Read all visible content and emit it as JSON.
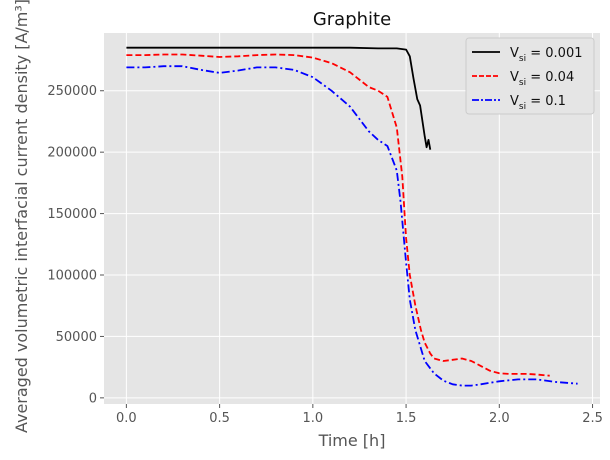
{
  "chart_data": {
    "type": "line",
    "title": "Graphite",
    "xlabel": "Time [h]",
    "ylabel": "Averaged volumetric interfacial current density [A/m³]",
    "xlim": [
      -0.12,
      2.54
    ],
    "ylim": [
      -5000,
      297000
    ],
    "xticks": [
      0.0,
      0.5,
      1.0,
      1.5,
      2.0,
      2.5
    ],
    "xtick_labels": [
      "0.0",
      "0.5",
      "1.0",
      "1.5",
      "2.0",
      "2.5"
    ],
    "yticks": [
      0,
      50000,
      100000,
      150000,
      200000,
      250000
    ],
    "ytick_labels": [
      "0",
      "50000",
      "100000",
      "150000",
      "200000",
      "250000"
    ],
    "grid": true,
    "legend_position": "top-right",
    "series": [
      {
        "name": "V_si = 0.001",
        "legend_base": "V",
        "legend_sub": "si",
        "legend_rest": " = 0.001",
        "color": "#000000",
        "dash": "solid",
        "x": [
          0.0,
          0.2,
          0.5,
          0.8,
          1.0,
          1.2,
          1.35,
          1.45,
          1.5,
          1.52,
          1.54,
          1.56,
          1.575,
          1.6,
          1.61,
          1.62,
          1.63
        ],
        "y": [
          285000,
          285000,
          285000,
          285000,
          285000,
          285000,
          284500,
          284500,
          283500,
          278000,
          260000,
          243000,
          238000,
          213000,
          204000,
          210000,
          202000
        ]
      },
      {
        "name": "V_si = 0.04",
        "legend_base": "V",
        "legend_sub": "si",
        "legend_rest": " = 0.04",
        "color": "#ff0000",
        "dash": "dashed",
        "x": [
          0.0,
          0.1,
          0.2,
          0.3,
          0.4,
          0.5,
          0.6,
          0.7,
          0.8,
          0.9,
          1.0,
          1.1,
          1.2,
          1.3,
          1.35,
          1.4,
          1.45,
          1.48,
          1.5,
          1.52,
          1.55,
          1.58,
          1.6,
          1.63,
          1.65,
          1.7,
          1.75,
          1.8,
          1.85,
          1.9,
          1.95,
          2.0,
          2.05,
          2.1,
          2.15,
          2.2,
          2.27
        ],
        "y": [
          279000,
          279000,
          279500,
          279500,
          278500,
          277500,
          278000,
          279000,
          279500,
          279000,
          277000,
          272500,
          265000,
          253000,
          250000,
          245000,
          220000,
          180000,
          130000,
          100000,
          75000,
          55000,
          45000,
          36000,
          32000,
          30000,
          31000,
          32000,
          30000,
          26000,
          22000,
          20000,
          19500,
          19500,
          19500,
          19000,
          18000
        ]
      },
      {
        "name": "V_si = 0.1",
        "legend_base": "V",
        "legend_sub": "si",
        "legend_rest": " = 0.1",
        "color": "#0000ff",
        "dash": "dashdot",
        "x": [
          0.0,
          0.1,
          0.2,
          0.3,
          0.4,
          0.5,
          0.6,
          0.7,
          0.8,
          0.9,
          1.0,
          1.1,
          1.2,
          1.3,
          1.35,
          1.4,
          1.45,
          1.47,
          1.5,
          1.52,
          1.55,
          1.58,
          1.6,
          1.65,
          1.7,
          1.75,
          1.8,
          1.85,
          1.9,
          2.0,
          2.1,
          2.2,
          2.3,
          2.42
        ],
        "y": [
          269000,
          269000,
          270000,
          270000,
          267000,
          264500,
          266500,
          269000,
          269000,
          267000,
          261000,
          250000,
          237000,
          217000,
          210000,
          205000,
          185000,
          160000,
          110000,
          80000,
          55000,
          40000,
          30000,
          20000,
          14000,
          11000,
          10000,
          10000,
          11000,
          13500,
          15000,
          15000,
          13000,
          11500
        ]
      }
    ]
  }
}
